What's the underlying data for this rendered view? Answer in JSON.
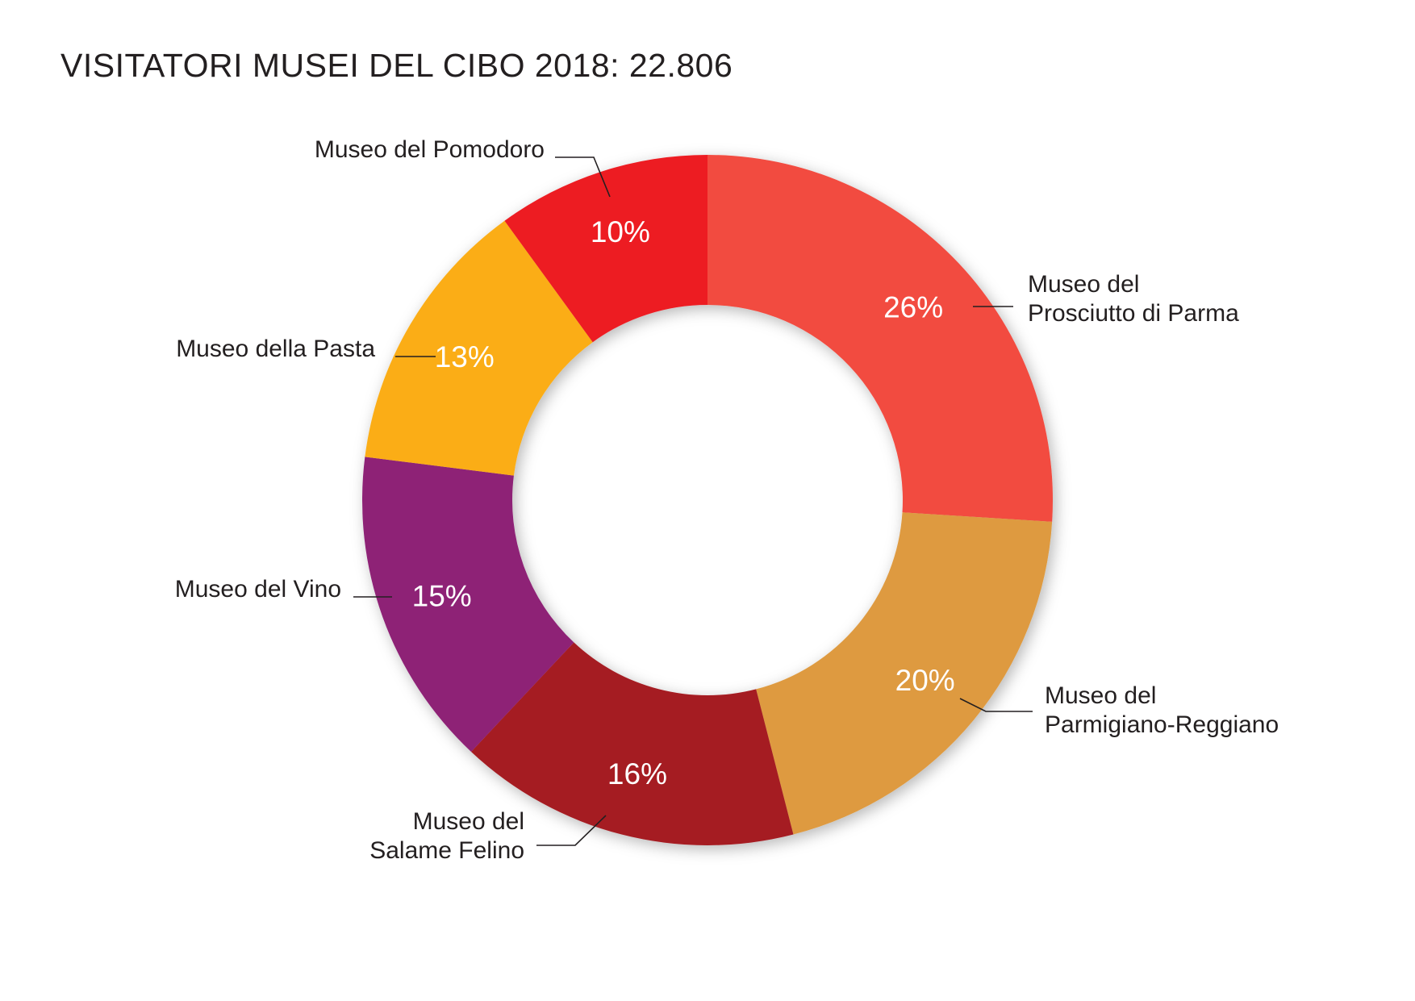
{
  "chart_data": {
    "type": "pie",
    "title": "VISITATORI MUSEI DEL CIBO 2018: 22.806",
    "unit": "%",
    "slices": [
      {
        "label_lines": [
          "Museo del",
          "Prosciutto di Parma"
        ],
        "value": 26,
        "value_label": "26%",
        "color": "#f24b40"
      },
      {
        "label_lines": [
          "Museo del",
          "Parmigiano-Reggiano"
        ],
        "value": 20,
        "value_label": "20%",
        "color": "#de9a40"
      },
      {
        "label_lines": [
          "Museo del",
          "Salame Felino"
        ],
        "value": 16,
        "value_label": "16%",
        "color": "#a51b21"
      },
      {
        "label_lines": [
          "Museo del Vino"
        ],
        "value": 15,
        "value_label": "15%",
        "color": "#8e2076"
      },
      {
        "label_lines": [
          "Museo della Pasta"
        ],
        "value": 13,
        "value_label": "13%",
        "color": "#fbad16"
      },
      {
        "label_lines": [
          "Museo del Pomodoro"
        ],
        "value": 10,
        "value_label": "10%",
        "color": "#ed1c24"
      }
    ]
  }
}
